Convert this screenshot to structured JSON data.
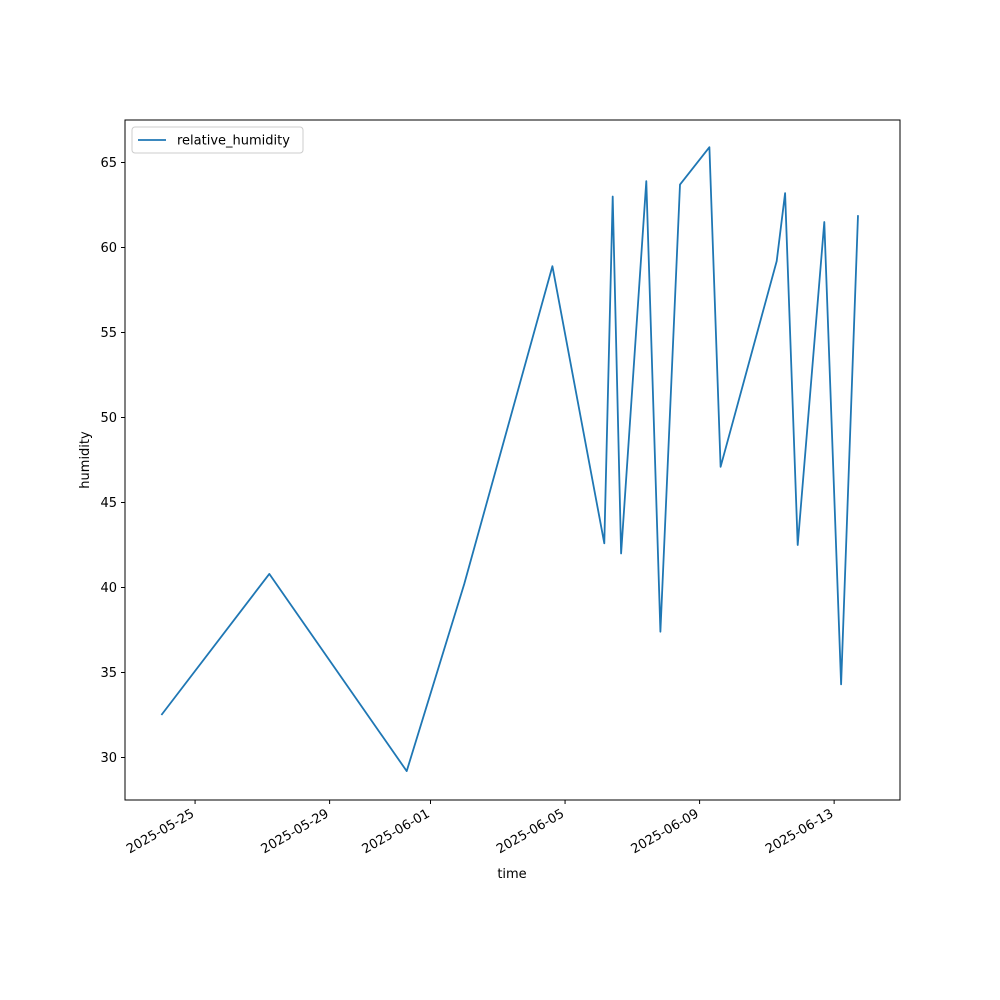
{
  "chart_data": {
    "type": "line",
    "title": "",
    "xlabel": "time",
    "ylabel": "humidity",
    "legend": {
      "placement": "top-left",
      "entries": [
        "relative_humidity"
      ]
    },
    "grid": false,
    "xlim": [
      "2025-05-22T22:00",
      "2025-06-14T23:00"
    ],
    "ylim": [
      27.5,
      67.5
    ],
    "x_ticks": [
      "2025-05-25",
      "2025-05-29",
      "2025-06-01",
      "2025-06-05",
      "2025-06-09",
      "2025-06-13"
    ],
    "y_ticks": [
      30,
      35,
      40,
      45,
      50,
      55,
      60,
      65
    ],
    "series": [
      {
        "name": "relative_humidity",
        "color": "#1f77b4",
        "x": [
          "2025-05-24T00:00",
          "2025-05-27T05:00",
          "2025-05-31T07:00",
          "2025-06-02T00:00",
          "2025-06-04T15:00",
          "2025-06-06T04:00",
          "2025-06-06T10:00",
          "2025-06-06T16:00",
          "2025-06-07T10:00",
          "2025-06-07T20:00",
          "2025-06-08T10:00",
          "2025-06-09T07:00",
          "2025-06-09T15:00",
          "2025-06-11T07:00",
          "2025-06-11T13:00",
          "2025-06-11T22:00",
          "2025-06-12T17:00",
          "2025-06-13T05:00",
          "2025-06-13T17:00"
        ],
        "y": [
          32.5,
          40.8,
          29.2,
          40.2,
          58.9,
          42.6,
          63.0,
          42.0,
          63.9,
          37.4,
          63.7,
          65.9,
          47.1,
          59.2,
          63.2,
          42.5,
          61.5,
          34.3,
          61.9
        ]
      }
    ]
  }
}
